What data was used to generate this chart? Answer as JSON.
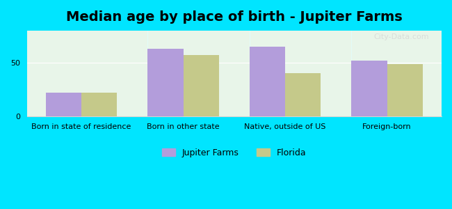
{
  "title": "Median age by place of birth - Jupiter Farms",
  "categories": [
    "Born in state of residence",
    "Born in other state",
    "Native, outside of US",
    "Foreign-born"
  ],
  "jupiter_farms": [
    22,
    63,
    65,
    52
  ],
  "florida": [
    22,
    57,
    40,
    49
  ],
  "bar_color_jupiter": "#b39ddb",
  "bar_color_florida": "#c5c98a",
  "background_outer": "#00e5ff",
  "background_inner_top": "#e8f5e9",
  "background_inner_bottom": "#f1f8e9",
  "ylabel_tick": "50",
  "ylim": [
    0,
    80
  ],
  "yticks": [
    0,
    50
  ],
  "legend_jupiter": "Jupiter Farms",
  "legend_florida": "Florida",
  "bar_width": 0.35,
  "title_fontsize": 14,
  "axis_label_fontsize": 8,
  "legend_fontsize": 9,
  "watermark": "City-Data.com"
}
